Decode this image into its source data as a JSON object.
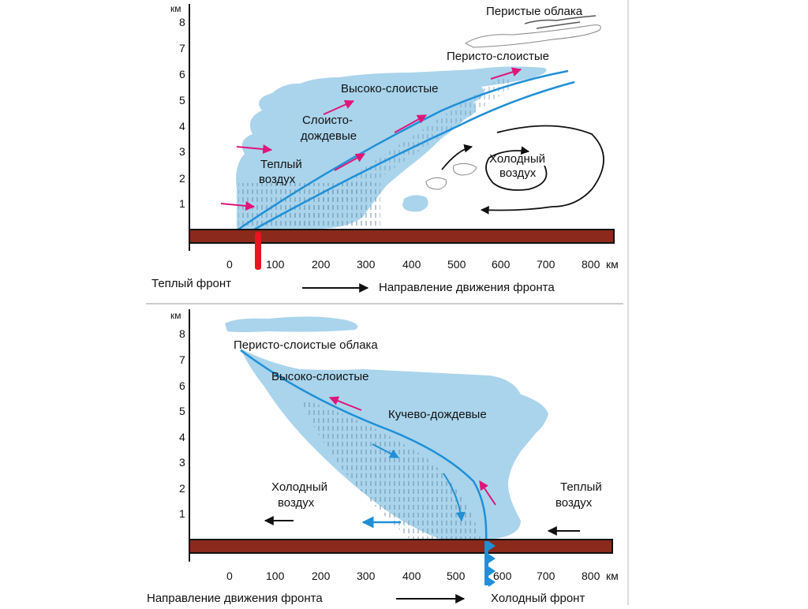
{
  "warm_front_panel": {
    "y_unit": "км",
    "y_ticks": [
      "1",
      "2",
      "3",
      "4",
      "5",
      "6",
      "7",
      "8"
    ],
    "x_ticks": [
      "0",
      "100",
      "200",
      "300",
      "400",
      "500",
      "600",
      "700",
      "800"
    ],
    "x_unit": "км",
    "labels": {
      "cirrus": "Перистые облака",
      "cirrostratus": "Перисто-слоистые",
      "altostratus": "Высоко-слоистые",
      "nimbostratus_1": "Слоисто-",
      "nimbostratus_2": "дождевые",
      "warm_air_1": "Теплый",
      "warm_air_2": "воздух",
      "cold_air_1": "Холодный",
      "cold_air_2": "воздух"
    },
    "front_caption": "Теплый фронт",
    "direction_caption": "Направление движения фронта",
    "colors": {
      "cloud": "#a9d4ec",
      "front_line": "#1f8fd6",
      "ground": "#8b2a1c",
      "front_marker": "#e8141e",
      "warm_arrow": "#e0157a"
    }
  },
  "cold_front_panel": {
    "y_unit": "км",
    "y_ticks": [
      "1",
      "2",
      "3",
      "4",
      "5",
      "6",
      "7",
      "8"
    ],
    "x_ticks": [
      "0",
      "100",
      "200",
      "300",
      "400",
      "500",
      "600",
      "700",
      "800"
    ],
    "x_unit": "км",
    "labels": {
      "cirrostratus": "Перисто-слоистые облака",
      "altostratus": "Высоко-слоистые",
      "cumulonimbus": "Кучево-дождевые",
      "cold_air_1": "Холодный",
      "cold_air_2": "воздух",
      "warm_air_1": "Теплый",
      "warm_air_2": "воздух"
    },
    "front_caption": "Холодный фронт",
    "direction_caption": "Направление движения фронта",
    "colors": {
      "cloud": "#a9d4ec",
      "front_line": "#1f8fd6",
      "ground": "#8b2a1c",
      "front_marker": "#1f8fd6",
      "warm_arrow": "#e0157a",
      "cold_arrow": "#1f8fd6"
    }
  }
}
